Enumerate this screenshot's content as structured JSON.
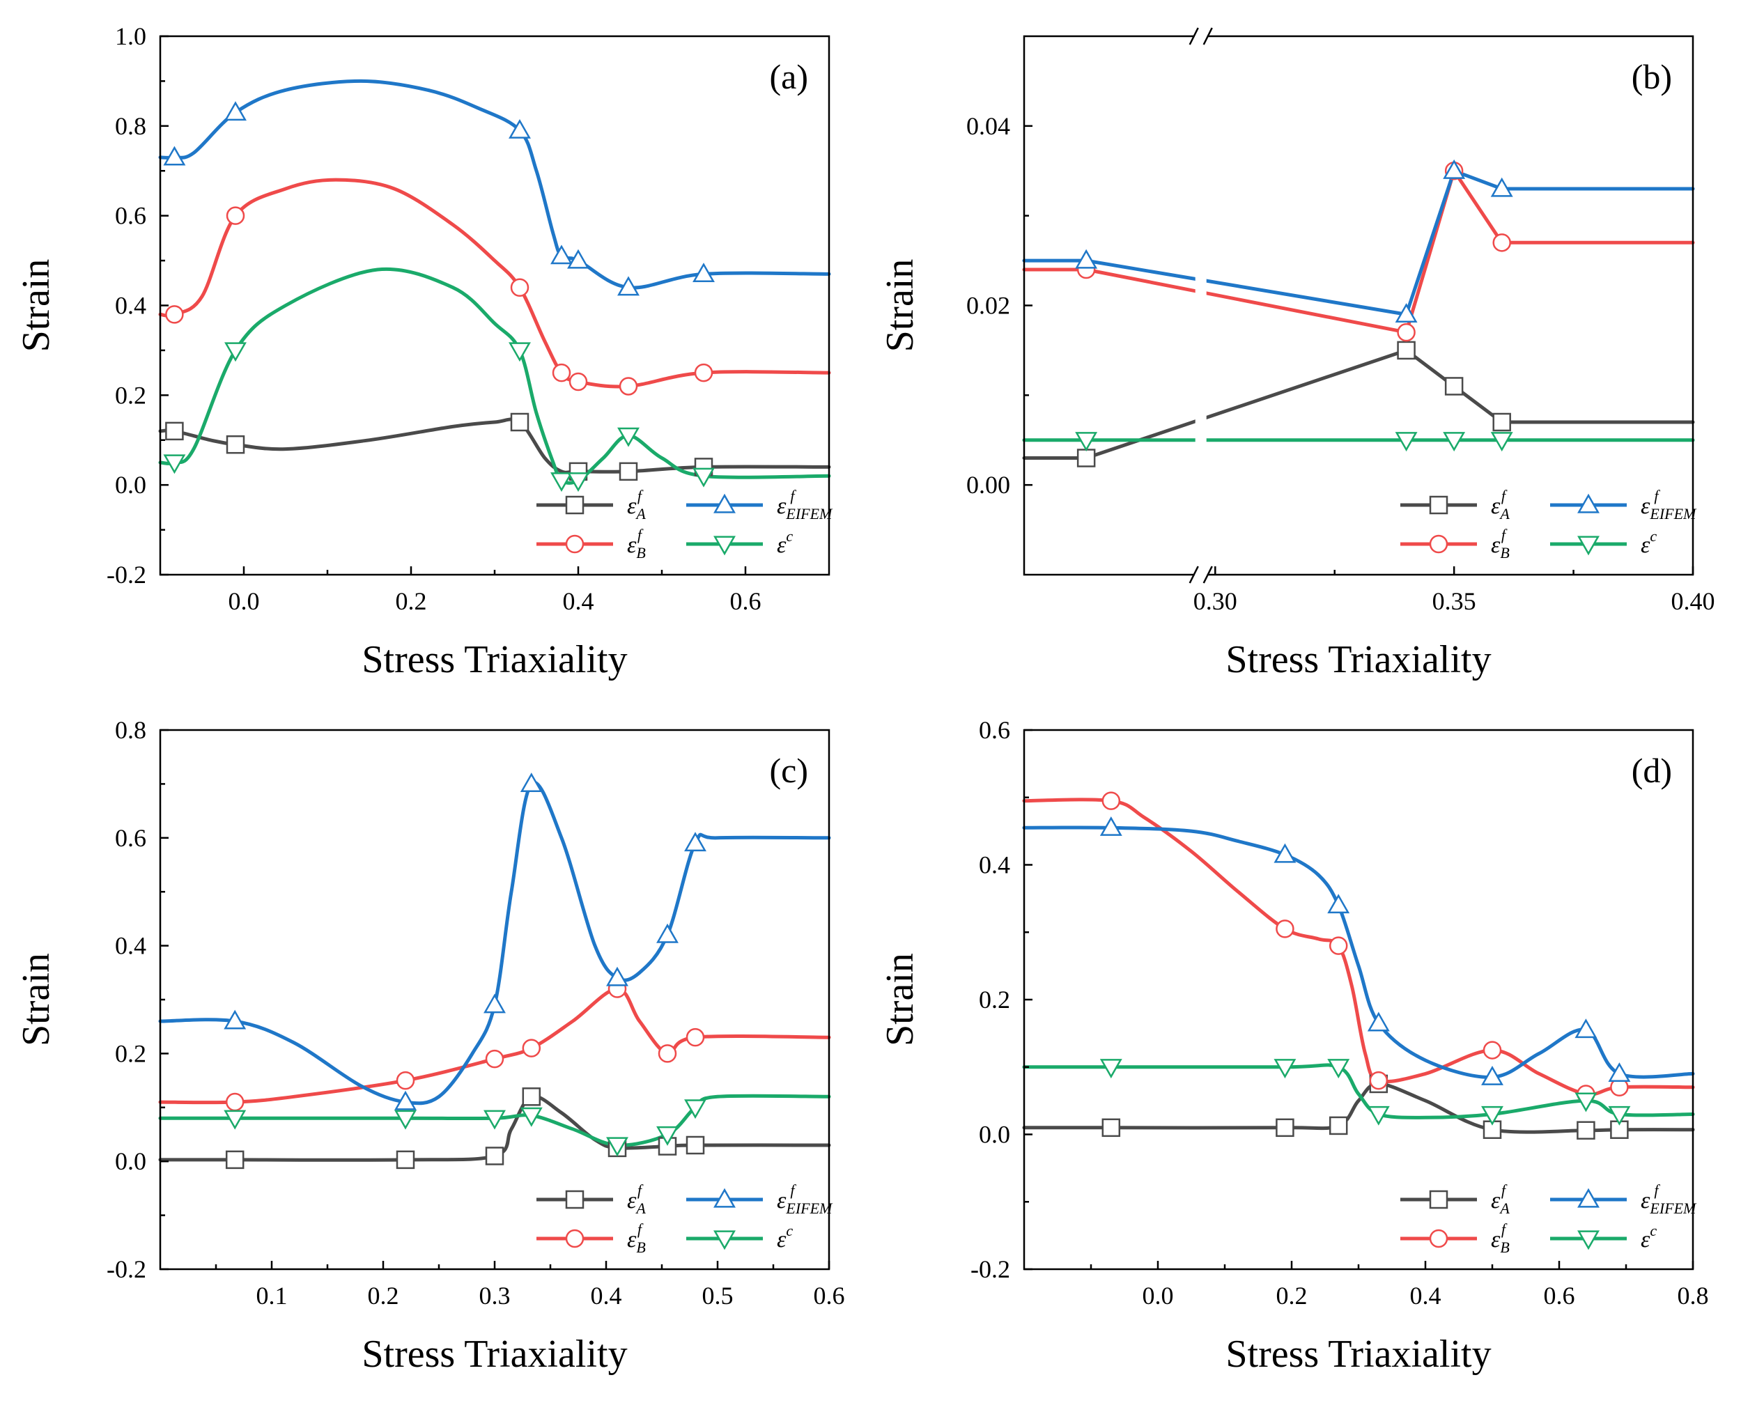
{
  "series_styles": [
    {
      "name": "εA_f",
      "base": "ε",
      "sup": "f",
      "sub": "A",
      "color": "#4a4a4a",
      "marker": "square"
    },
    {
      "name": "εB_f",
      "base": "ε",
      "sup": "f",
      "sub": "B",
      "color": "#ef4a4a",
      "marker": "circle"
    },
    {
      "name": "εEIFEM_f",
      "base": "ε",
      "sup": "f",
      "sub": "EIFEM",
      "color": "#1f77c8",
      "marker": "triangle-up"
    },
    {
      "name": "εc",
      "base": "ε",
      "sup": "c",
      "sub": "",
      "color": "#1aaa6a",
      "marker": "triangle-down"
    }
  ],
  "chart_data": [
    {
      "type": "line",
      "panel_label": "(a)",
      "xlabel": "Stress Triaxiality",
      "ylabel": "Strain",
      "xlim": [
        -0.1,
        0.7
      ],
      "ylim": [
        -0.2,
        1.0
      ],
      "xticks": [
        0.0,
        0.2,
        0.4,
        0.6
      ],
      "xtick_labels": [
        "0.0",
        "0.2",
        "0.4",
        "0.6"
      ],
      "yticks": [
        -0.2,
        0.0,
        0.2,
        0.4,
        0.6,
        0.8,
        1.0
      ],
      "ytick_labels": [
        "-0.2",
        "0.0",
        "0.2",
        "0.4",
        "0.6",
        "0.8",
        "1.0"
      ],
      "legend_position": "bottom-right",
      "series": [
        {
          "name": "εA_f",
          "x": [
            -0.083,
            -0.01,
            0.33,
            0.4,
            0.46,
            0.55
          ],
          "y": [
            0.12,
            0.09,
            0.14,
            0.03,
            0.03,
            0.04
          ],
          "curve_x": [
            -0.1,
            -0.083,
            -0.04,
            -0.01,
            0.05,
            0.15,
            0.25,
            0.3,
            0.33,
            0.36,
            0.38,
            0.4,
            0.46,
            0.55,
            0.7
          ],
          "curve_y": [
            0.12,
            0.12,
            0.1,
            0.09,
            0.08,
            0.1,
            0.13,
            0.14,
            0.14,
            0.06,
            0.03,
            0.03,
            0.03,
            0.04,
            0.04
          ]
        },
        {
          "name": "εB_f",
          "x": [
            -0.083,
            -0.01,
            0.33,
            0.38,
            0.4,
            0.46,
            0.55
          ],
          "y": [
            0.38,
            0.6,
            0.44,
            0.25,
            0.23,
            0.22,
            0.25
          ],
          "curve_x": [
            -0.1,
            -0.083,
            -0.05,
            -0.01,
            0.05,
            0.11,
            0.18,
            0.25,
            0.3,
            0.33,
            0.36,
            0.38,
            0.4,
            0.46,
            0.55,
            0.7
          ],
          "curve_y": [
            0.38,
            0.38,
            0.42,
            0.6,
            0.66,
            0.68,
            0.66,
            0.58,
            0.5,
            0.44,
            0.32,
            0.25,
            0.23,
            0.22,
            0.25,
            0.25
          ]
        },
        {
          "name": "εEIFEM_f",
          "x": [
            -0.083,
            -0.01,
            0.33,
            0.38,
            0.4,
            0.46,
            0.55
          ],
          "y": [
            0.73,
            0.83,
            0.79,
            0.51,
            0.5,
            0.44,
            0.47
          ],
          "curve_x": [
            -0.1,
            -0.083,
            -0.06,
            -0.01,
            0.05,
            0.14,
            0.22,
            0.28,
            0.33,
            0.35,
            0.37,
            0.38,
            0.4,
            0.46,
            0.55,
            0.7
          ],
          "curve_y": [
            0.73,
            0.73,
            0.74,
            0.83,
            0.88,
            0.9,
            0.88,
            0.84,
            0.79,
            0.7,
            0.56,
            0.51,
            0.5,
            0.44,
            0.47,
            0.47
          ]
        },
        {
          "name": "εc",
          "x": [
            -0.083,
            -0.01,
            0.33,
            0.38,
            0.4,
            0.46,
            0.55
          ],
          "y": [
            0.05,
            0.3,
            0.3,
            0.01,
            0.01,
            0.11,
            0.02
          ],
          "curve_x": [
            -0.1,
            -0.083,
            -0.06,
            -0.01,
            0.05,
            0.16,
            0.25,
            0.3,
            0.33,
            0.35,
            0.37,
            0.38,
            0.4,
            0.43,
            0.46,
            0.5,
            0.55,
            0.7
          ],
          "curve_y": [
            0.05,
            0.05,
            0.08,
            0.3,
            0.4,
            0.48,
            0.44,
            0.36,
            0.3,
            0.16,
            0.05,
            0.01,
            0.01,
            0.06,
            0.11,
            0.06,
            0.02,
            0.02
          ]
        }
      ]
    },
    {
      "type": "line",
      "panel_label": "(b)",
      "xlabel": "Stress Triaxiality",
      "ylabel": "Strain",
      "xlim": [
        0.26,
        0.4
      ],
      "ylim": [
        -0.01,
        0.05
      ],
      "axis_break_x": 0.297,
      "xticks": [
        0.3,
        0.35,
        0.4
      ],
      "xtick_labels": [
        "0.30",
        "0.35",
        "0.40"
      ],
      "yticks": [
        0.0,
        0.02,
        0.04
      ],
      "ytick_labels": [
        "0.00",
        "0.02",
        "0.04"
      ],
      "legend_position": "bottom-right",
      "series": [
        {
          "name": "εA_f",
          "x": [
            0.273,
            0.34,
            0.35,
            0.36
          ],
          "y": [
            0.003,
            0.015,
            0.011,
            0.007
          ],
          "curve_x": [
            0.26,
            0.273,
            0.34,
            0.35,
            0.36,
            0.4
          ],
          "curve_y": [
            0.003,
            0.003,
            0.015,
            0.011,
            0.007,
            0.007
          ]
        },
        {
          "name": "εB_f",
          "x": [
            0.273,
            0.34,
            0.35,
            0.36
          ],
          "y": [
            0.024,
            0.017,
            0.035,
            0.027
          ],
          "curve_x": [
            0.26,
            0.273,
            0.34,
            0.35,
            0.36,
            0.4
          ],
          "curve_y": [
            0.024,
            0.024,
            0.017,
            0.035,
            0.027,
            0.027
          ]
        },
        {
          "name": "εEIFEM_f",
          "x": [
            0.273,
            0.34,
            0.35,
            0.36
          ],
          "y": [
            0.025,
            0.019,
            0.035,
            0.033
          ],
          "curve_x": [
            0.26,
            0.273,
            0.34,
            0.35,
            0.36,
            0.4
          ],
          "curve_y": [
            0.025,
            0.025,
            0.019,
            0.035,
            0.033,
            0.033
          ]
        },
        {
          "name": "εc",
          "x": [
            0.273,
            0.34,
            0.35,
            0.36
          ],
          "y": [
            0.005,
            0.005,
            0.005,
            0.005
          ],
          "curve_x": [
            0.26,
            0.273,
            0.34,
            0.35,
            0.36,
            0.4
          ],
          "curve_y": [
            0.005,
            0.005,
            0.005,
            0.005,
            0.005,
            0.005
          ]
        }
      ]
    },
    {
      "type": "line",
      "panel_label": "(c)",
      "xlabel": "Stress Triaxiality",
      "ylabel": "Strain",
      "xlim": [
        0.0,
        0.6
      ],
      "ylim": [
        -0.2,
        0.8
      ],
      "xticks": [
        0.1,
        0.2,
        0.3,
        0.4,
        0.5,
        0.6
      ],
      "xtick_labels": [
        "0.1",
        "0.2",
        "0.3",
        "0.4",
        "0.5",
        "0.6"
      ],
      "yticks": [
        -0.2,
        0.0,
        0.2,
        0.4,
        0.6,
        0.8
      ],
      "ytick_labels": [
        "-0.2",
        "0.0",
        "0.2",
        "0.4",
        "0.6",
        "0.8"
      ],
      "legend_position": "bottom-right",
      "series": [
        {
          "name": "εA_f",
          "x": [
            0.067,
            0.22,
            0.3,
            0.333,
            0.41,
            0.455,
            0.48
          ],
          "y": [
            0.003,
            0.003,
            0.01,
            0.12,
            0.025,
            0.028,
            0.03
          ],
          "curve_x": [
            0.0,
            0.067,
            0.22,
            0.3,
            0.315,
            0.333,
            0.36,
            0.39,
            0.41,
            0.455,
            0.48,
            0.6
          ],
          "curve_y": [
            0.003,
            0.003,
            0.003,
            0.01,
            0.06,
            0.12,
            0.09,
            0.04,
            0.025,
            0.028,
            0.03,
            0.03
          ]
        },
        {
          "name": "εB_f",
          "x": [
            0.067,
            0.22,
            0.3,
            0.333,
            0.41,
            0.455,
            0.48
          ],
          "y": [
            0.11,
            0.15,
            0.19,
            0.21,
            0.32,
            0.2,
            0.23
          ],
          "curve_x": [
            0.0,
            0.067,
            0.12,
            0.22,
            0.3,
            0.333,
            0.37,
            0.41,
            0.43,
            0.455,
            0.48,
            0.6
          ],
          "curve_y": [
            0.11,
            0.11,
            0.12,
            0.15,
            0.19,
            0.21,
            0.26,
            0.32,
            0.26,
            0.2,
            0.23,
            0.23
          ]
        },
        {
          "name": "εEIFEM_f",
          "x": [
            0.067,
            0.22,
            0.3,
            0.333,
            0.41,
            0.455,
            0.48
          ],
          "y": [
            0.26,
            0.11,
            0.29,
            0.7,
            0.34,
            0.42,
            0.59
          ],
          "curve_x": [
            0.0,
            0.067,
            0.12,
            0.18,
            0.22,
            0.25,
            0.28,
            0.3,
            0.315,
            0.333,
            0.36,
            0.39,
            0.41,
            0.43,
            0.455,
            0.48,
            0.5,
            0.6
          ],
          "curve_y": [
            0.26,
            0.26,
            0.22,
            0.14,
            0.11,
            0.12,
            0.2,
            0.29,
            0.5,
            0.7,
            0.6,
            0.4,
            0.34,
            0.35,
            0.42,
            0.59,
            0.6,
            0.6
          ]
        },
        {
          "name": "εc",
          "x": [
            0.067,
            0.22,
            0.3,
            0.333,
            0.41,
            0.455,
            0.48
          ],
          "y": [
            0.08,
            0.08,
            0.08,
            0.085,
            0.03,
            0.05,
            0.1
          ],
          "curve_x": [
            0.0,
            0.067,
            0.22,
            0.3,
            0.333,
            0.37,
            0.41,
            0.455,
            0.48,
            0.5,
            0.6
          ],
          "curve_y": [
            0.08,
            0.08,
            0.08,
            0.08,
            0.085,
            0.06,
            0.03,
            0.05,
            0.1,
            0.12,
            0.12
          ]
        }
      ]
    },
    {
      "type": "line",
      "panel_label": "(d)",
      "xlabel": "Stress Triaxiality",
      "ylabel": "Strain",
      "xlim": [
        -0.2,
        0.8
      ],
      "ylim": [
        -0.2,
        0.6
      ],
      "xticks": [
        0.0,
        0.2,
        0.4,
        0.6,
        0.8
      ],
      "xtick_labels": [
        "0.0",
        "0.2",
        "0.4",
        "0.6",
        "0.8"
      ],
      "yticks": [
        -0.2,
        0.0,
        0.2,
        0.4,
        0.6
      ],
      "ytick_labels": [
        "-0.2",
        "0.0",
        "0.2",
        "0.4",
        "0.6"
      ],
      "legend_position": "bottom-right",
      "series": [
        {
          "name": "εA_f",
          "x": [
            -0.07,
            0.19,
            0.27,
            0.33,
            0.5,
            0.64,
            0.69
          ],
          "y": [
            0.01,
            0.01,
            0.013,
            0.075,
            0.007,
            0.006,
            0.007
          ],
          "curve_x": [
            -0.2,
            -0.07,
            0.19,
            0.27,
            0.3,
            0.33,
            0.4,
            0.5,
            0.64,
            0.69,
            0.8
          ],
          "curve_y": [
            0.01,
            0.01,
            0.01,
            0.013,
            0.05,
            0.075,
            0.05,
            0.007,
            0.006,
            0.007,
            0.007
          ]
        },
        {
          "name": "εB_f",
          "x": [
            -0.07,
            0.19,
            0.27,
            0.33,
            0.5,
            0.64,
            0.69
          ],
          "y": [
            0.495,
            0.305,
            0.28,
            0.08,
            0.125,
            0.06,
            0.07
          ],
          "curve_x": [
            -0.2,
            -0.07,
            -0.02,
            0.05,
            0.12,
            0.19,
            0.24,
            0.27,
            0.29,
            0.31,
            0.33,
            0.4,
            0.5,
            0.57,
            0.64,
            0.69,
            0.8
          ],
          "curve_y": [
            0.495,
            0.495,
            0.47,
            0.42,
            0.36,
            0.305,
            0.29,
            0.28,
            0.22,
            0.12,
            0.08,
            0.09,
            0.125,
            0.09,
            0.06,
            0.07,
            0.07
          ]
        },
        {
          "name": "εEIFEM_f",
          "x": [
            -0.07,
            0.19,
            0.27,
            0.33,
            0.5,
            0.64,
            0.69
          ],
          "y": [
            0.455,
            0.415,
            0.34,
            0.165,
            0.085,
            0.155,
            0.09
          ],
          "curve_x": [
            -0.2,
            -0.07,
            0.05,
            0.12,
            0.19,
            0.24,
            0.27,
            0.3,
            0.33,
            0.4,
            0.5,
            0.57,
            0.64,
            0.69,
            0.8
          ],
          "curve_y": [
            0.455,
            0.455,
            0.45,
            0.435,
            0.415,
            0.385,
            0.34,
            0.25,
            0.165,
            0.11,
            0.085,
            0.12,
            0.155,
            0.09,
            0.09
          ]
        },
        {
          "name": "εc",
          "x": [
            -0.07,
            0.19,
            0.27,
            0.33,
            0.5,
            0.64,
            0.69
          ],
          "y": [
            0.1,
            0.1,
            0.1,
            0.03,
            0.03,
            0.05,
            0.03
          ],
          "curve_x": [
            -0.2,
            -0.07,
            0.19,
            0.27,
            0.3,
            0.33,
            0.4,
            0.5,
            0.64,
            0.69,
            0.8
          ],
          "curve_y": [
            0.1,
            0.1,
            0.1,
            0.1,
            0.06,
            0.03,
            0.025,
            0.03,
            0.05,
            0.03,
            0.03
          ]
        }
      ]
    }
  ]
}
